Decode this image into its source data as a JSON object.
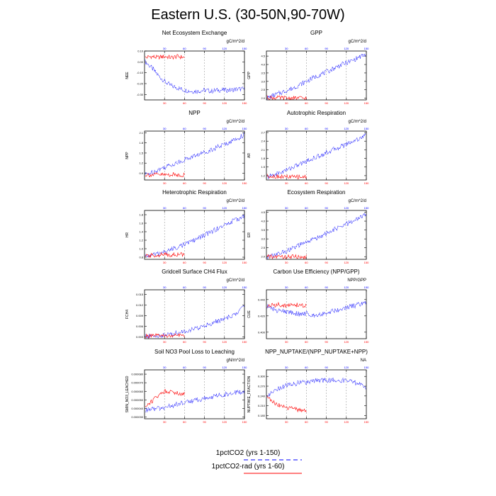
{
  "title": "Eastern U.S. (30-50N,90-70W)",
  "colors": {
    "run1": "#0000ff",
    "run2": "#ff0000",
    "grid": "#888888"
  },
  "legend": {
    "items": [
      {
        "label": "1pctCO2 (yrs 1-150)",
        "color": "#0000ff",
        "dash": true
      },
      {
        "label": "1pctCO2-rad (yrs 1-60)",
        "color": "#ff0000",
        "dash": false
      }
    ]
  },
  "chart_data": [
    {
      "type": "line",
      "title": "Net Ecosystem Exchange",
      "units": "gC/m^2/d",
      "ylabel": "NEE",
      "xlim": [
        0,
        150
      ],
      "ylim": [
        -0.35,
        0.1
      ],
      "yticks": [
        -0.3,
        -0.2,
        -0.1,
        0.0,
        0.1
      ],
      "ytick_labels": [
        "-0.30",
        "-0.20",
        "-0.10",
        "0.00",
        "0.10"
      ],
      "xticks_top": [
        30,
        60,
        90,
        120,
        150
      ],
      "xticks_bottom": [
        30,
        60,
        90,
        120,
        150
      ],
      "gridlines_x": [
        30,
        60,
        90,
        120
      ],
      "series": [
        {
          "color": "#0000ff",
          "x": [
            1,
            10,
            20,
            30,
            40,
            50,
            60,
            70,
            80,
            90,
            100,
            110,
            120,
            130,
            140,
            150
          ],
          "y": [
            0.0,
            -0.05,
            -0.12,
            -0.18,
            -0.22,
            -0.24,
            -0.26,
            -0.27,
            -0.27,
            -0.26,
            -0.27,
            -0.26,
            -0.26,
            -0.26,
            -0.25,
            -0.25
          ]
        },
        {
          "color": "#ff0000",
          "x": [
            1,
            10,
            20,
            30,
            40,
            50,
            60
          ],
          "y": [
            0.04,
            0.05,
            0.04,
            0.05,
            0.04,
            0.05,
            0.04
          ]
        }
      ]
    },
    {
      "type": "line",
      "title": "GPP",
      "units": "gC/m^2/d",
      "ylabel": "GPP",
      "xlim": [
        0,
        150
      ],
      "ylim": [
        1.9,
        4.8
      ],
      "yticks": [
        2.0,
        2.5,
        3.0,
        3.5,
        4.0,
        4.5
      ],
      "ytick_labels": [
        "2.0",
        "2.5",
        "3.0",
        "3.5",
        "4.0",
        "4.5"
      ],
      "xticks_top": [
        30,
        60,
        90,
        120,
        150
      ],
      "xticks_bottom": [
        30,
        60,
        90,
        120,
        150
      ],
      "gridlines_x": [
        30,
        60,
        90,
        120
      ],
      "series": [
        {
          "color": "#0000ff",
          "x": [
            1,
            10,
            20,
            30,
            40,
            50,
            60,
            70,
            80,
            90,
            100,
            110,
            120,
            130,
            140,
            150
          ],
          "y": [
            2.0,
            2.15,
            2.3,
            2.45,
            2.6,
            2.8,
            3.0,
            3.2,
            3.4,
            3.55,
            3.75,
            3.95,
            4.1,
            4.25,
            4.45,
            4.6
          ]
        },
        {
          "color": "#ff0000",
          "x": [
            1,
            10,
            20,
            30,
            40,
            50,
            60
          ],
          "y": [
            2.05,
            2.03,
            2.02,
            2.01,
            2.0,
            2.01,
            2.0
          ]
        }
      ]
    },
    {
      "type": "line",
      "title": "NPP",
      "units": "gC/m^2/d",
      "ylabel": "NPP",
      "xlim": [
        0,
        150
      ],
      "ylim": [
        0.7,
        2.15
      ],
      "yticks": [
        0.9,
        1.2,
        1.5,
        1.8,
        2.1
      ],
      "ytick_labels": [
        "0.9",
        "1.2",
        "1.5",
        "1.8",
        "2.1"
      ],
      "xticks_top": [
        30,
        60,
        90,
        120,
        150
      ],
      "xticks_bottom": [
        30,
        60,
        90,
        120,
        150
      ],
      "gridlines_x": [
        30,
        60,
        90,
        120
      ],
      "series": [
        {
          "color": "#0000ff",
          "x": [
            1,
            10,
            20,
            30,
            40,
            50,
            60,
            70,
            80,
            90,
            100,
            110,
            120,
            130,
            140,
            150
          ],
          "y": [
            0.86,
            0.92,
            1.0,
            1.08,
            1.15,
            1.22,
            1.3,
            1.38,
            1.45,
            1.52,
            1.6,
            1.68,
            1.75,
            1.85,
            1.93,
            2.05
          ]
        },
        {
          "color": "#ff0000",
          "x": [
            1,
            10,
            20,
            30,
            40,
            50,
            60
          ],
          "y": [
            0.86,
            0.85,
            0.86,
            0.85,
            0.86,
            0.85,
            0.85
          ]
        }
      ]
    },
    {
      "type": "line",
      "title": "Autotrophic Respiration",
      "units": "gC/m^2/d",
      "ylabel": "AR",
      "xlim": [
        0,
        150
      ],
      "ylim": [
        1.05,
        2.75
      ],
      "yticks": [
        1.2,
        1.5,
        1.8,
        2.1,
        2.4,
        2.7
      ],
      "ytick_labels": [
        "1.2",
        "1.5",
        "1.8",
        "2.1",
        "2.4",
        "2.7"
      ],
      "xticks_top": [
        30,
        60,
        90,
        120,
        150
      ],
      "xticks_bottom": [
        30,
        60,
        90,
        120,
        150
      ],
      "gridlines_x": [
        30,
        60,
        90,
        120
      ],
      "series": [
        {
          "color": "#0000ff",
          "x": [
            1,
            10,
            20,
            30,
            40,
            50,
            60,
            70,
            80,
            90,
            100,
            110,
            120,
            130,
            140,
            150
          ],
          "y": [
            1.15,
            1.22,
            1.3,
            1.4,
            1.5,
            1.6,
            1.7,
            1.8,
            1.9,
            2.0,
            2.1,
            2.2,
            2.3,
            2.4,
            2.5,
            2.62
          ]
        },
        {
          "color": "#ff0000",
          "x": [
            1,
            10,
            20,
            30,
            40,
            50,
            60
          ],
          "y": [
            1.2,
            1.18,
            1.17,
            1.16,
            1.15,
            1.16,
            1.15
          ]
        }
      ]
    },
    {
      "type": "line",
      "title": "Heterotrophic Respiration",
      "units": "gC/m^2/d",
      "ylabel": "HR",
      "xlim": [
        0,
        150
      ],
      "ylim": [
        0.75,
        1.9
      ],
      "yticks": [
        0.8,
        1.0,
        1.2,
        1.4,
        1.6,
        1.8
      ],
      "ytick_labels": [
        "0.8",
        "1.0",
        "1.2",
        "1.4",
        "1.6",
        "1.8"
      ],
      "xticks_top": [
        30,
        60,
        90,
        120,
        150
      ],
      "xticks_bottom": [
        30,
        60,
        90,
        120,
        150
      ],
      "gridlines_x": [
        30,
        60,
        90,
        120
      ],
      "series": [
        {
          "color": "#0000ff",
          "x": [
            1,
            10,
            20,
            30,
            40,
            50,
            60,
            70,
            80,
            90,
            100,
            110,
            120,
            130,
            140,
            150
          ],
          "y": [
            0.82,
            0.85,
            0.88,
            0.92,
            0.98,
            1.05,
            1.1,
            1.17,
            1.24,
            1.32,
            1.4,
            1.48,
            1.55,
            1.63,
            1.7,
            1.78
          ]
        },
        {
          "color": "#ff0000",
          "x": [
            1,
            10,
            20,
            30,
            40,
            50,
            60
          ],
          "y": [
            0.82,
            0.84,
            0.85,
            0.86,
            0.86,
            0.87,
            0.86
          ]
        }
      ]
    },
    {
      "type": "line",
      "title": "Ecosystem Respiration",
      "units": "gC/m^2/d",
      "ylabel": "ER",
      "xlim": [
        0,
        150
      ],
      "ylim": [
        1.85,
        4.6
      ],
      "yticks": [
        2.0,
        2.5,
        3.0,
        3.5,
        4.0,
        4.5
      ],
      "ytick_labels": [
        "2.0",
        "2.5",
        "3.0",
        "3.5",
        "4.0",
        "4.5"
      ],
      "xticks_top": [
        30,
        60,
        90,
        120,
        150
      ],
      "xticks_bottom": [
        30,
        60,
        90,
        120,
        150
      ],
      "gridlines_x": [
        30,
        60,
        90,
        120
      ],
      "series": [
        {
          "color": "#0000ff",
          "x": [
            1,
            10,
            20,
            30,
            40,
            50,
            60,
            70,
            80,
            90,
            100,
            110,
            120,
            130,
            140,
            150
          ],
          "y": [
            1.98,
            2.07,
            2.18,
            2.32,
            2.48,
            2.65,
            2.8,
            2.97,
            3.14,
            3.3,
            3.48,
            3.66,
            3.82,
            4.0,
            4.18,
            4.38
          ]
        },
        {
          "color": "#ff0000",
          "x": [
            1,
            10,
            20,
            30,
            40,
            50,
            60
          ],
          "y": [
            2.0,
            1.99,
            2.0,
            1.99,
            2.0,
            1.99,
            1.99
          ]
        }
      ]
    },
    {
      "type": "line",
      "title": "Gridcell Surface CH4 Flux",
      "units": "gC/m^2/d",
      "ylabel": "FCH4",
      "xlim": [
        0,
        150
      ],
      "ylim": [
        0.0025,
        0.0163
      ],
      "yticks": [
        0.003,
        0.006,
        0.009,
        0.012,
        0.015
      ],
      "ytick_labels": [
        "0.003",
        "0.006",
        "0.009",
        "0.012",
        "0.015"
      ],
      "xticks_top": [
        30,
        60,
        90,
        120,
        150
      ],
      "xticks_bottom": [
        30,
        60,
        90,
        120,
        150
      ],
      "gridlines_x": [
        30,
        60,
        90,
        120
      ],
      "series": [
        {
          "color": "#0000ff",
          "x": [
            1,
            10,
            20,
            30,
            40,
            50,
            60,
            70,
            80,
            90,
            100,
            110,
            120,
            130,
            140,
            150
          ],
          "y": [
            0.0031,
            0.0032,
            0.0033,
            0.0035,
            0.0038,
            0.0042,
            0.0046,
            0.005,
            0.0055,
            0.0062,
            0.0068,
            0.0075,
            0.008,
            0.0088,
            0.0098,
            0.012
          ]
        },
        {
          "color": "#ff0000",
          "x": [
            1,
            10,
            20,
            30,
            40,
            50,
            60
          ],
          "y": [
            0.0032,
            0.0032,
            0.0033,
            0.0033,
            0.0033,
            0.0034,
            0.0034
          ]
        }
      ]
    },
    {
      "type": "line",
      "title": "Carbon Use Efficiency (NPP/GPP)",
      "units": "NPP/GPP",
      "ylabel": "CUE",
      "xlim": [
        0,
        150
      ],
      "ylim": [
        0.392,
        0.452
      ],
      "yticks": [
        0.4,
        0.42,
        0.44
      ],
      "ytick_labels": [
        "0.400",
        "0.420",
        "0.440"
      ],
      "xticks_top": [
        30,
        60,
        90,
        120,
        150
      ],
      "xticks_bottom": [
        30,
        60,
        90,
        120,
        150
      ],
      "gridlines_x": [
        30,
        60,
        90,
        120
      ],
      "series": [
        {
          "color": "#0000ff",
          "x": [
            1,
            10,
            20,
            30,
            40,
            50,
            60,
            70,
            80,
            90,
            100,
            110,
            120,
            130,
            140,
            150
          ],
          "y": [
            0.432,
            0.428,
            0.426,
            0.425,
            0.424,
            0.422,
            0.423,
            0.421,
            0.422,
            0.424,
            0.426,
            0.428,
            0.43,
            0.432,
            0.434,
            0.436
          ]
        },
        {
          "color": "#ff0000",
          "x": [
            1,
            10,
            20,
            30,
            40,
            50,
            60
          ],
          "y": [
            0.432,
            0.433,
            0.434,
            0.432,
            0.434,
            0.433,
            0.432
          ]
        }
      ]
    },
    {
      "type": "line",
      "title": "Soil NO3 Pool Loss to Leaching",
      "units": "gN/m^2/d",
      "ylabel": "SMIN_NO3_LEACHED",
      "xlim": [
        0,
        150
      ],
      "ylim": [
        2.8e-05,
        8.5e-05
      ],
      "yticks": [
        3e-05,
        4e-05,
        5e-05,
        6e-05,
        7e-05,
        8e-05
      ],
      "ytick_labels": [
        "0.000030",
        "0.000040",
        "0.000050",
        "0.000060",
        "0.000070",
        "0.000080"
      ],
      "xticks_top": [
        30,
        60,
        90,
        120,
        150
      ],
      "xticks_bottom": [
        30,
        60,
        90,
        120,
        150
      ],
      "gridlines_x": [
        30,
        60,
        90,
        120
      ],
      "series": [
        {
          "color": "#0000ff",
          "x": [
            1,
            10,
            20,
            30,
            40,
            50,
            60,
            70,
            80,
            90,
            100,
            110,
            120,
            130,
            140,
            150
          ],
          "y": [
            3.8e-05,
            3.9e-05,
            4e-05,
            4.1e-05,
            4.3e-05,
            4.5e-05,
            4.7e-05,
            4.9e-05,
            5e-05,
            5.2e-05,
            5.3e-05,
            5.5e-05,
            5.6e-05,
            5.8e-05,
            5.9e-05,
            6e-05
          ]
        },
        {
          "color": "#ff0000",
          "x": [
            1,
            10,
            20,
            30,
            40,
            50,
            60
          ],
          "y": [
            4.2e-05,
            4.8e-05,
            5.5e-05,
            6e-05,
            6e-05,
            5.8e-05,
            5.7e-05
          ]
        }
      ]
    },
    {
      "type": "line",
      "title": "NPP_NUPTAKE/(NPP_NUPTAKE+NPP)",
      "units": "NA",
      "ylabel": "NUPTAKE_FRACTION",
      "xlim": [
        0,
        150
      ],
      "ylim": [
        0.17,
        0.32
      ],
      "yticks": [
        0.18,
        0.21,
        0.24,
        0.27,
        0.3
      ],
      "ytick_labels": [
        "0.180",
        "0.210",
        "0.240",
        "0.270",
        "0.300"
      ],
      "xticks_top": [
        30,
        60,
        90,
        120,
        150
      ],
      "xticks_bottom": [
        30,
        60,
        90,
        120,
        150
      ],
      "gridlines_x": [
        30,
        60,
        90,
        120
      ],
      "series": [
        {
          "color": "#0000ff",
          "x": [
            1,
            10,
            20,
            30,
            40,
            50,
            60,
            70,
            80,
            90,
            100,
            110,
            120,
            130,
            140,
            150
          ],
          "y": [
            0.24,
            0.255,
            0.265,
            0.272,
            0.277,
            0.28,
            0.282,
            0.285,
            0.287,
            0.288,
            0.289,
            0.288,
            0.287,
            0.284,
            0.275,
            0.262
          ]
        },
        {
          "color": "#ff0000",
          "x": [
            1,
            10,
            20,
            30,
            40,
            50,
            60
          ],
          "y": [
            0.24,
            0.22,
            0.21,
            0.205,
            0.2,
            0.197,
            0.195
          ]
        }
      ]
    }
  ]
}
